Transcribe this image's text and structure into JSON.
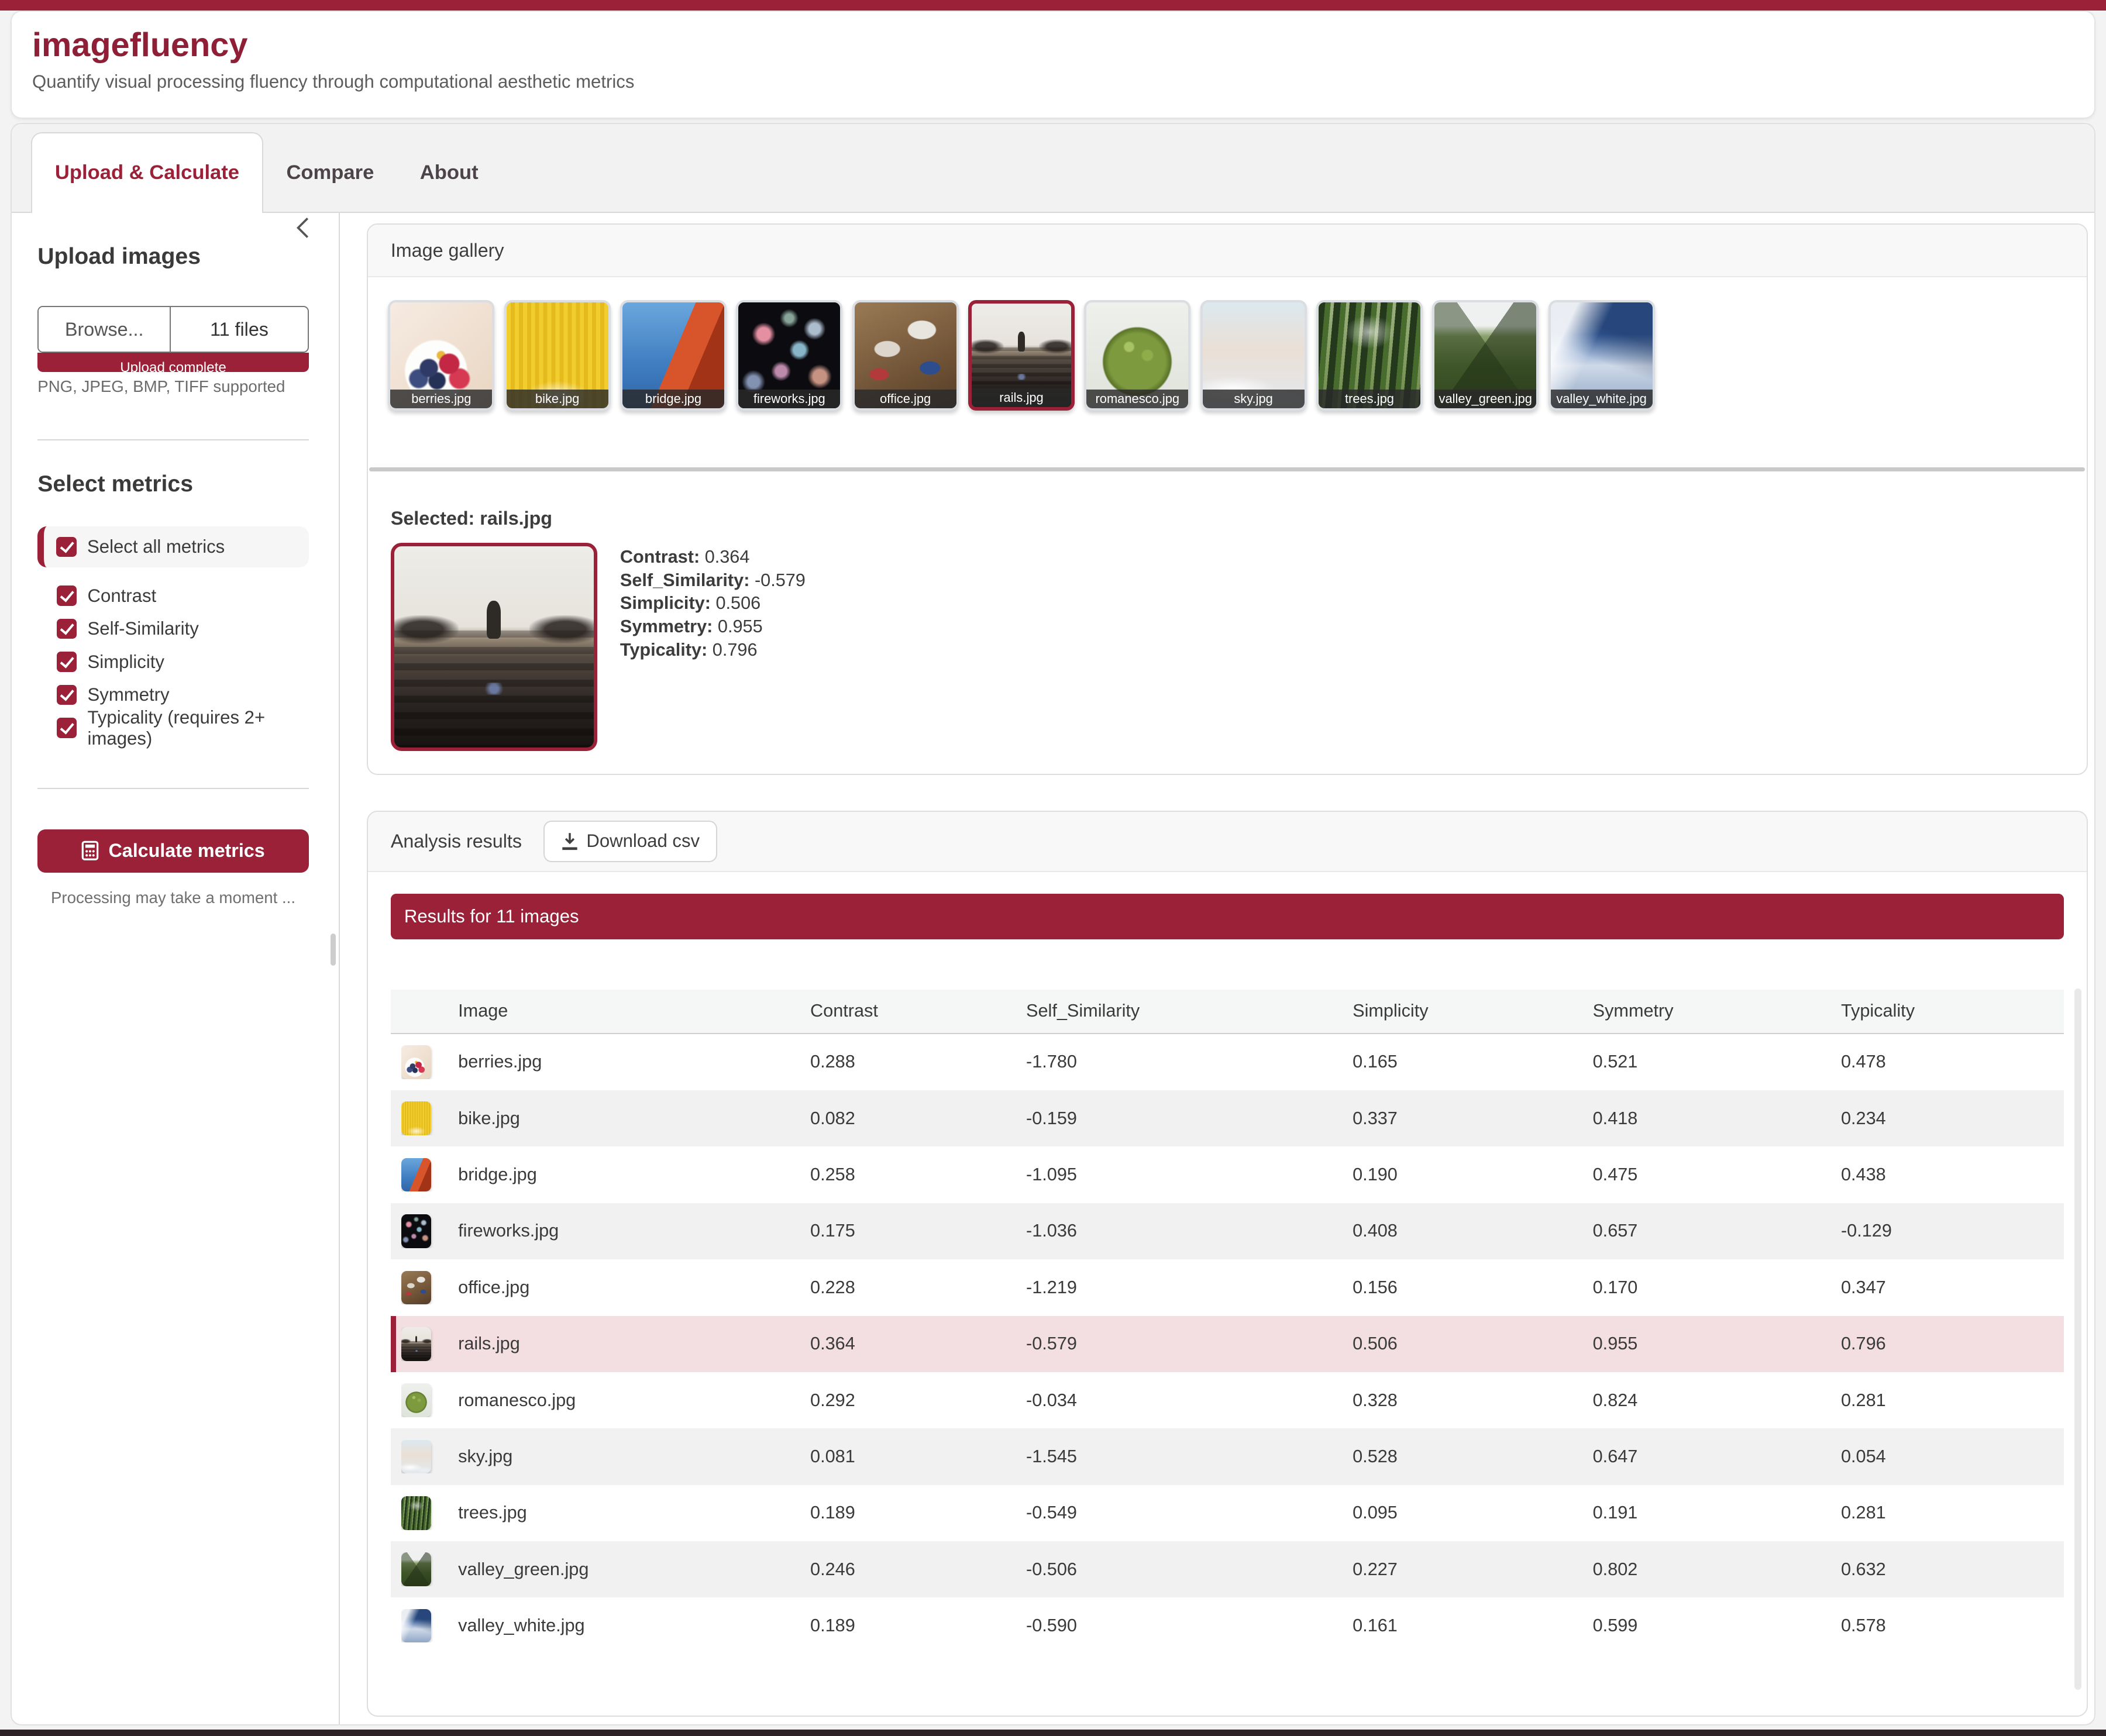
{
  "app": {
    "title": "imagefluency",
    "subtitle": "Quantify visual processing fluency through computational aesthetic metrics"
  },
  "colors": {
    "accent": "#9a2137",
    "accent_title": "#8e1f36",
    "row_highlight": "#f3dee2",
    "row_stripe": "#f1f1f1",
    "tab_bar_bg": "#f2f2f2"
  },
  "tabs": [
    {
      "label": "Upload & Calculate",
      "active": true
    },
    {
      "label": "Compare",
      "active": false
    },
    {
      "label": "About",
      "active": false
    }
  ],
  "sidebar": {
    "collapse_icon": "chevron-left-icon",
    "upload_heading": "Upload images",
    "browse_label": "Browse...",
    "files_label": "11 files",
    "progress_label": "Upload complete",
    "formats_note": "PNG, JPEG, BMP, TIFF supported",
    "metrics_heading": "Select metrics",
    "select_all_label": "Select all metrics",
    "metrics": [
      {
        "label": "Contrast",
        "checked": true
      },
      {
        "label": "Self-Similarity",
        "checked": true
      },
      {
        "label": "Simplicity",
        "checked": true
      },
      {
        "label": "Symmetry",
        "checked": true
      },
      {
        "label": "Typicality (requires 2+ images)",
        "checked": true
      }
    ],
    "calculate_label": "Calculate metrics",
    "calculate_icon": "calculator-icon",
    "processing_note": "Processing may take a moment ..."
  },
  "gallery": {
    "header": "Image gallery",
    "images": [
      {
        "name": "berries.jpg",
        "key": "berries",
        "selected": false
      },
      {
        "name": "bike.jpg",
        "key": "bike",
        "selected": false
      },
      {
        "name": "bridge.jpg",
        "key": "bridge",
        "selected": false
      },
      {
        "name": "fireworks.jpg",
        "key": "fireworks",
        "selected": false
      },
      {
        "name": "office.jpg",
        "key": "office",
        "selected": false
      },
      {
        "name": "rails.jpg",
        "key": "rails",
        "selected": true
      },
      {
        "name": "romanesco.jpg",
        "key": "romanesco",
        "selected": false
      },
      {
        "name": "sky.jpg",
        "key": "sky",
        "selected": false
      },
      {
        "name": "trees.jpg",
        "key": "trees",
        "selected": false
      },
      {
        "name": "valley_green.jpg",
        "key": "valley_green",
        "selected": false
      },
      {
        "name": "valley_white.jpg",
        "key": "valley_white",
        "selected": false
      }
    ]
  },
  "selected": {
    "label": "Selected: rails.jpg",
    "image_key": "rails",
    "metrics": [
      {
        "label": "Contrast",
        "value": "0.364"
      },
      {
        "label": "Self_Similarity",
        "value": "-0.579"
      },
      {
        "label": "Simplicity",
        "value": "0.506"
      },
      {
        "label": "Symmetry",
        "value": "0.955"
      },
      {
        "label": "Typicality",
        "value": "0.796"
      }
    ]
  },
  "results": {
    "header": "Analysis results",
    "download_label": "Download csv",
    "download_icon": "download-icon",
    "banner": "Results for 11 images",
    "table": {
      "columns": [
        "Image",
        "Contrast",
        "Self_Similarity",
        "Simplicity",
        "Symmetry",
        "Typicality"
      ],
      "rows": [
        {
          "name": "berries.jpg",
          "key": "berries",
          "values": [
            "0.288",
            "-1.780",
            "0.165",
            "0.521",
            "0.478"
          ],
          "highlight": false
        },
        {
          "name": "bike.jpg",
          "key": "bike",
          "values": [
            "0.082",
            "-0.159",
            "0.337",
            "0.418",
            "0.234"
          ],
          "highlight": false
        },
        {
          "name": "bridge.jpg",
          "key": "bridge",
          "values": [
            "0.258",
            "-1.095",
            "0.190",
            "0.475",
            "0.438"
          ],
          "highlight": false
        },
        {
          "name": "fireworks.jpg",
          "key": "fireworks",
          "values": [
            "0.175",
            "-1.036",
            "0.408",
            "0.657",
            "-0.129"
          ],
          "highlight": false
        },
        {
          "name": "office.jpg",
          "key": "office",
          "values": [
            "0.228",
            "-1.219",
            "0.156",
            "0.170",
            "0.347"
          ],
          "highlight": false
        },
        {
          "name": "rails.jpg",
          "key": "rails",
          "values": [
            "0.364",
            "-0.579",
            "0.506",
            "0.955",
            "0.796"
          ],
          "highlight": true
        },
        {
          "name": "romanesco.jpg",
          "key": "romanesco",
          "values": [
            "0.292",
            "-0.034",
            "0.328",
            "0.824",
            "0.281"
          ],
          "highlight": false
        },
        {
          "name": "sky.jpg",
          "key": "sky",
          "values": [
            "0.081",
            "-1.545",
            "0.528",
            "0.647",
            "0.054"
          ],
          "highlight": false
        },
        {
          "name": "trees.jpg",
          "key": "trees",
          "values": [
            "0.189",
            "-0.549",
            "0.095",
            "0.191",
            "0.281"
          ],
          "highlight": false
        },
        {
          "name": "valley_green.jpg",
          "key": "valley_green",
          "values": [
            "0.246",
            "-0.506",
            "0.227",
            "0.802",
            "0.632"
          ],
          "highlight": false
        },
        {
          "name": "valley_white.jpg",
          "key": "valley_white",
          "values": [
            "0.189",
            "-0.590",
            "0.161",
            "0.599",
            "0.578"
          ],
          "highlight": false
        }
      ]
    }
  }
}
